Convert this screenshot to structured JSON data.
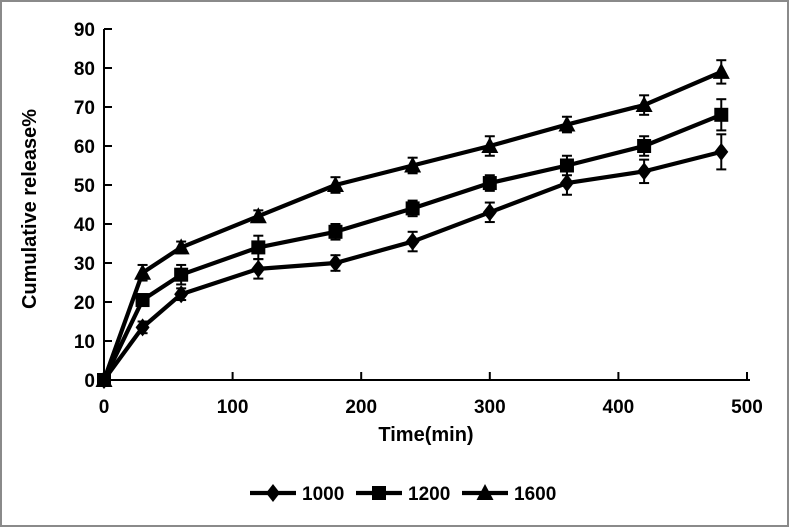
{
  "frame": {
    "background": "#ffffff",
    "border_color": "#8a8a8a"
  },
  "chart_data": {
    "type": "line",
    "title": "",
    "xlabel": "Time(min)",
    "ylabel": "Cumulative release%",
    "x": [
      0,
      30,
      60,
      120,
      180,
      240,
      300,
      360,
      420,
      480
    ],
    "series": [
      {
        "name": "1000",
        "marker": "diamond",
        "color": "#000000",
        "values": [
          0,
          13.5,
          22,
          28.5,
          30,
          35.5,
          43,
          50.5,
          53.5,
          58.5
        ],
        "errors": [
          0,
          1.5,
          1.5,
          2.5,
          2,
          2.5,
          2.5,
          3,
          3,
          4.5
        ]
      },
      {
        "name": "1200",
        "marker": "square",
        "color": "#000000",
        "values": [
          0,
          20.5,
          27,
          34,
          38,
          44,
          50.5,
          55,
          60,
          68
        ],
        "errors": [
          0,
          1.5,
          2.5,
          3,
          2,
          2,
          2,
          2.5,
          2.5,
          4
        ]
      },
      {
        "name": "1600",
        "marker": "triangle",
        "color": "#000000",
        "values": [
          0,
          27.5,
          34,
          42,
          50,
          55,
          60,
          65.5,
          70.5,
          79
        ],
        "errors": [
          0,
          2,
          1.5,
          1.5,
          2,
          2,
          2.5,
          2,
          2.5,
          3
        ]
      }
    ],
    "xlim": [
      0,
      500
    ],
    "ylim": [
      0,
      90
    ],
    "xticks": [
      0,
      100,
      200,
      300,
      400,
      500
    ],
    "yticks": [
      0,
      10,
      20,
      30,
      40,
      50,
      60,
      70,
      80,
      90
    ],
    "grid": false,
    "error_bars": true,
    "legend_position": "bottom-center",
    "colors": {
      "line": "#000000",
      "text": "#000000",
      "axis": "#000000"
    }
  }
}
